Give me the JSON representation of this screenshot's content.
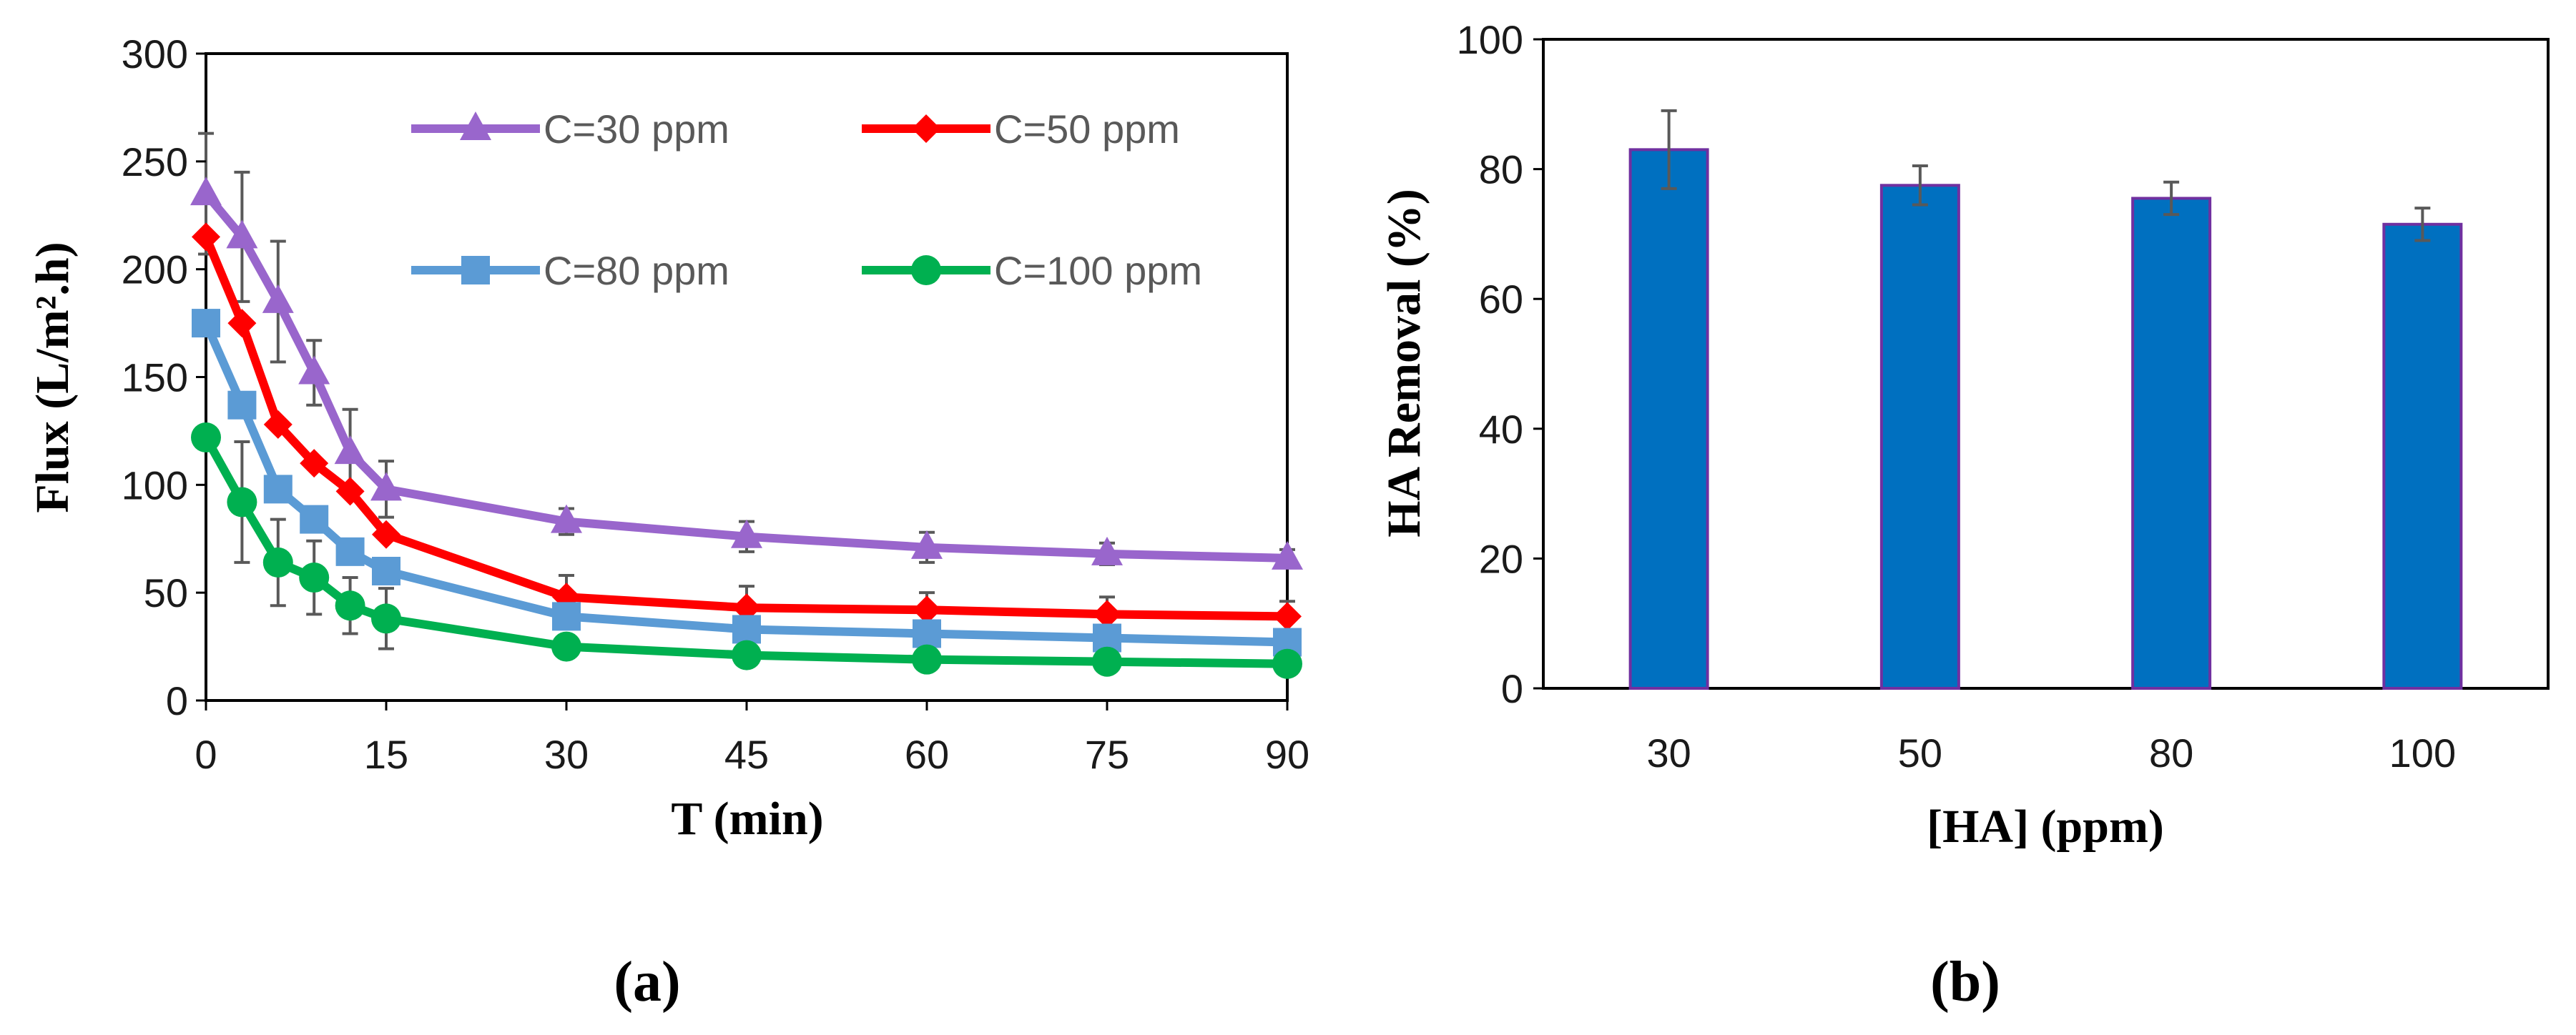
{
  "panels": [
    {
      "label": "(a)"
    },
    {
      "label": "(b)"
    }
  ],
  "colors": {
    "c30": "#9966cc",
    "c50": "#ff0000",
    "c80": "#5b9bd5",
    "c100": "#00b050",
    "bar_fill": "#0070c0",
    "bar_edge": "#7030a0",
    "error_bar": "#595959"
  },
  "chart_data": [
    {
      "type": "line",
      "xlabel": "T (min)",
      "ylabel": "Flux (L/m².h)",
      "ylim": [
        0,
        300
      ],
      "xlim": [
        0,
        90
      ],
      "y_ticks": [
        "0",
        "50",
        "100",
        "150",
        "200",
        "250",
        "300"
      ],
      "x_ticks": [
        "0",
        "15",
        "30",
        "45",
        "60",
        "75",
        "90"
      ],
      "legend_position": "top",
      "x": [
        0,
        3,
        6,
        9,
        12,
        15,
        30,
        45,
        60,
        75,
        90
      ],
      "series": [
        {
          "name": "C=30 ppm",
          "marker": "triangle",
          "color": "#9966cc",
          "values": [
            235,
            215,
            185,
            152,
            115,
            98,
            83,
            76,
            71,
            68,
            66
          ],
          "errors": [
            28,
            30,
            28,
            15,
            20,
            13,
            6,
            7,
            7,
            5,
            4
          ]
        },
        {
          "name": "C=50 ppm",
          "marker": "diamond",
          "color": "#ff0000",
          "values": [
            215,
            175,
            128,
            110,
            97,
            77,
            48,
            43,
            42,
            40,
            39
          ],
          "errors": [
            0,
            0,
            0,
            0,
            0,
            0,
            10,
            10,
            8,
            8,
            7
          ]
        },
        {
          "name": "C=80 ppm",
          "marker": "square",
          "color": "#5b9bd5",
          "values": [
            175,
            137,
            98,
            84,
            69,
            60,
            39,
            33,
            31,
            29,
            27
          ],
          "errors": [
            0,
            0,
            0,
            0,
            0,
            0,
            0,
            0,
            0,
            0,
            0
          ]
        },
        {
          "name": "C=100 ppm",
          "marker": "circle",
          "color": "#00b050",
          "values": [
            122,
            92,
            64,
            57,
            44,
            38,
            25,
            21,
            19,
            18,
            17
          ],
          "errors": [
            0,
            28,
            20,
            17,
            13,
            14,
            0,
            0,
            0,
            0,
            0
          ]
        }
      ]
    },
    {
      "type": "bar",
      "xlabel": "[HA] (ppm)",
      "ylabel": "HA Removal (%)",
      "ylim": [
        0,
        100
      ],
      "y_ticks": [
        "0",
        "20",
        "40",
        "60",
        "80",
        "100"
      ],
      "categories": [
        "30",
        "50",
        "80",
        "100"
      ],
      "values": [
        83,
        77.5,
        75.5,
        71.5
      ],
      "errors": [
        6,
        3,
        2.5,
        2.5
      ]
    }
  ]
}
